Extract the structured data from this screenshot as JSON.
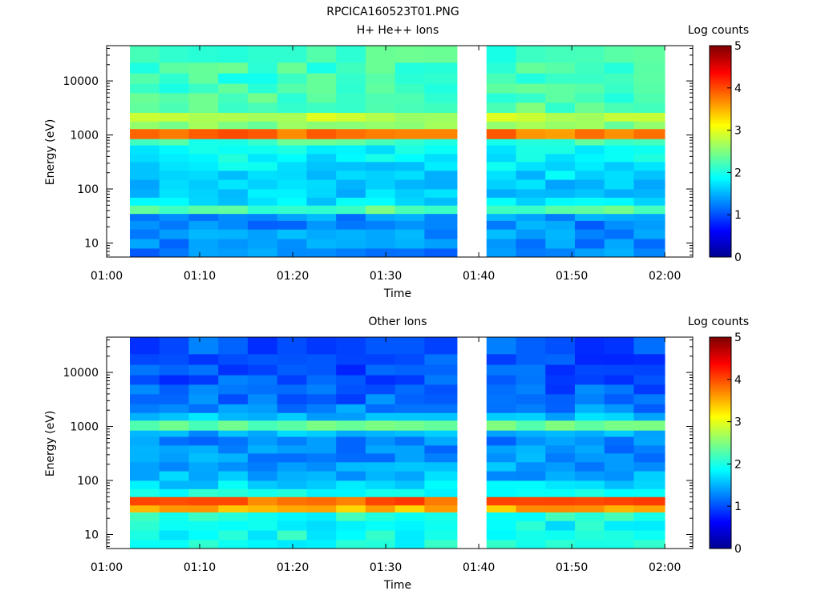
{
  "figure": {
    "title": "RPCICA160523T01.PNG"
  },
  "colormap": [
    "#00008f",
    "#0000ff",
    "#007fff",
    "#00ffff",
    "#7fff7f",
    "#ffff00",
    "#ff7f00",
    "#ff0000",
    "#7f0000"
  ],
  "chart_data": [
    {
      "type": "heatmap",
      "title": "H+ He++ Ions",
      "xlabel": "Time",
      "ylabel": "Energy (eV)",
      "colorbar_label": "Log counts",
      "colorbar_ticks": [
        "0",
        "1",
        "2",
        "3",
        "4",
        "5"
      ],
      "colorbar_range": [
        0,
        5
      ],
      "x_ticks": [
        "01:00",
        "01:10",
        "01:20",
        "01:30",
        "01:40",
        "01:50",
        "02:00"
      ],
      "y_ticks": [
        "10",
        "100",
        "1000",
        "10000"
      ],
      "y_scale": "log",
      "ylim": [
        5.5,
        45000
      ],
      "xlim": [
        "01:00",
        "02:03"
      ],
      "data_gaps": [
        [
          "01:00",
          "01:02:30"
        ],
        [
          "01:37:40",
          "01:40:50"
        ],
        [
          "02:00",
          "02:03"
        ]
      ],
      "intervals": [
        [
          "01:02:30",
          "01:05:40"
        ],
        [
          "01:05:40",
          "01:08:50"
        ],
        [
          "01:08:50",
          "01:12:00"
        ],
        [
          "01:12:00",
          "01:15:10"
        ],
        [
          "01:15:10",
          "01:18:20"
        ],
        [
          "01:18:20",
          "01:21:30"
        ],
        [
          "01:21:30",
          "01:24:40"
        ],
        [
          "01:24:40",
          "01:27:50"
        ],
        [
          "01:27:50",
          "01:31:00"
        ],
        [
          "01:31:00",
          "01:34:10"
        ],
        [
          "01:34:10",
          "01:37:40"
        ],
        [
          "01:40:50",
          "01:44:00"
        ],
        [
          "01:44:00",
          "01:47:10"
        ],
        [
          "01:47:10",
          "01:50:20"
        ],
        [
          "01:50:20",
          "01:53:30"
        ],
        [
          "01:53:30",
          "01:56:40"
        ],
        [
          "01:56:40",
          "02:00:00"
        ]
      ],
      "bands": [
        {
          "energy": [
            5.5,
            8
          ],
          "log_counts": 1.3
        },
        {
          "energy": [
            8,
            12
          ],
          "log_counts": 1.3
        },
        {
          "energy": [
            12,
            18
          ],
          "log_counts": 1.4
        },
        {
          "energy": [
            18,
            26
          ],
          "log_counts": 1.3
        },
        {
          "energy": [
            26,
            35
          ],
          "log_counts": 1.35
        },
        {
          "energy": [
            35,
            50
          ],
          "log_counts": 2.3
        },
        {
          "energy": [
            50,
            70
          ],
          "log_counts": 1.7
        },
        {
          "energy": [
            70,
            100
          ],
          "log_counts": 1.6
        },
        {
          "energy": [
            100,
            150
          ],
          "log_counts": 1.6
        },
        {
          "energy": [
            150,
            220
          ],
          "log_counts": 1.7
        },
        {
          "energy": [
            220,
            320
          ],
          "log_counts": 1.75
        },
        {
          "energy": [
            320,
            450
          ],
          "log_counts": 1.85
        },
        {
          "energy": [
            450,
            650
          ],
          "log_counts": 1.9
        },
        {
          "energy": [
            650,
            850
          ],
          "log_counts": 2.2
        },
        {
          "energy": [
            850,
            1300
          ],
          "log_counts": 3.8
        },
        {
          "energy": [
            1300,
            1800
          ],
          "log_counts": 2.5
        },
        {
          "energy": [
            1800,
            2600
          ],
          "log_counts": 2.8
        },
        {
          "energy": [
            2600,
            4000
          ],
          "log_counts": 2.3
        },
        {
          "energy": [
            4000,
            6000
          ],
          "log_counts": 2.25
        },
        {
          "energy": [
            6000,
            9000
          ],
          "log_counts": 2.2
        },
        {
          "energy": [
            9000,
            14000
          ],
          "log_counts": 2.15
        },
        {
          "energy": [
            14000,
            22000
          ],
          "log_counts": 2.2
        },
        {
          "energy": [
            22000,
            45000
          ],
          "log_counts": 2.2
        }
      ]
    },
    {
      "type": "heatmap",
      "title": "Other Ions",
      "xlabel": "Time",
      "ylabel": "Energy (eV)",
      "colorbar_label": "Log counts",
      "colorbar_ticks": [
        "0",
        "1",
        "2",
        "3",
        "4",
        "5"
      ],
      "colorbar_range": [
        0,
        5
      ],
      "x_ticks": [
        "01:00",
        "01:10",
        "01:20",
        "01:30",
        "01:40",
        "01:50",
        "02:00"
      ],
      "y_ticks": [
        "10",
        "100",
        "1000",
        "10000"
      ],
      "y_scale": "log",
      "ylim": [
        5.5,
        45000
      ],
      "xlim": [
        "01:00",
        "02:03"
      ],
      "data_gaps": [
        [
          "01:00",
          "01:02:30"
        ],
        [
          "01:37:40",
          "01:40:50"
        ],
        [
          "02:00",
          "02:03"
        ]
      ],
      "intervals": [
        [
          "01:02:30",
          "01:05:40"
        ],
        [
          "01:05:40",
          "01:08:50"
        ],
        [
          "01:08:50",
          "01:12:00"
        ],
        [
          "01:12:00",
          "01:15:10"
        ],
        [
          "01:15:10",
          "01:18:20"
        ],
        [
          "01:18:20",
          "01:21:30"
        ],
        [
          "01:21:30",
          "01:24:40"
        ],
        [
          "01:24:40",
          "01:27:50"
        ],
        [
          "01:27:50",
          "01:31:00"
        ],
        [
          "01:31:00",
          "01:34:10"
        ],
        [
          "01:34:10",
          "01:37:40"
        ],
        [
          "01:40:50",
          "01:44:00"
        ],
        [
          "01:44:00",
          "01:47:10"
        ],
        [
          "01:47:10",
          "01:50:20"
        ],
        [
          "01:50:20",
          "01:53:30"
        ],
        [
          "01:53:30",
          "01:56:40"
        ],
        [
          "01:56:40",
          "02:00:00"
        ]
      ],
      "bands": [
        {
          "energy": [
            5.5,
            8
          ],
          "log_counts": 2.0
        },
        {
          "energy": [
            8,
            12
          ],
          "log_counts": 1.95
        },
        {
          "energy": [
            12,
            18
          ],
          "log_counts": 1.9
        },
        {
          "energy": [
            18,
            26
          ],
          "log_counts": 2.0
        },
        {
          "energy": [
            26,
            35
          ],
          "log_counts": 3.5
        },
        {
          "energy": [
            35,
            50
          ],
          "log_counts": 3.9
        },
        {
          "energy": [
            50,
            70
          ],
          "log_counts": 2.0
        },
        {
          "energy": [
            70,
            100
          ],
          "log_counts": 1.7
        },
        {
          "energy": [
            100,
            150
          ],
          "log_counts": 1.5
        },
        {
          "energy": [
            150,
            220
          ],
          "log_counts": 1.4
        },
        {
          "energy": [
            220,
            320
          ],
          "log_counts": 1.35
        },
        {
          "energy": [
            320,
            450
          ],
          "log_counts": 1.3
        },
        {
          "energy": [
            450,
            650
          ],
          "log_counts": 1.25
        },
        {
          "energy": [
            650,
            850
          ],
          "log_counts": 1.5
        },
        {
          "energy": [
            850,
            1300
          ],
          "log_counts": 2.3
        },
        {
          "energy": [
            1300,
            1800
          ],
          "log_counts": 1.6
        },
        {
          "energy": [
            1800,
            2600
          ],
          "log_counts": 1.3
        },
        {
          "energy": [
            2600,
            4000
          ],
          "log_counts": 1.15
        },
        {
          "energy": [
            4000,
            6000
          ],
          "log_counts": 1.1
        },
        {
          "energy": [
            6000,
            9000
          ],
          "log_counts": 1.05
        },
        {
          "energy": [
            9000,
            14000
          ],
          "log_counts": 1.0
        },
        {
          "energy": [
            14000,
            22000
          ],
          "log_counts": 1.0
        },
        {
          "energy": [
            22000,
            45000
          ],
          "log_counts": 1.05
        }
      ]
    }
  ]
}
